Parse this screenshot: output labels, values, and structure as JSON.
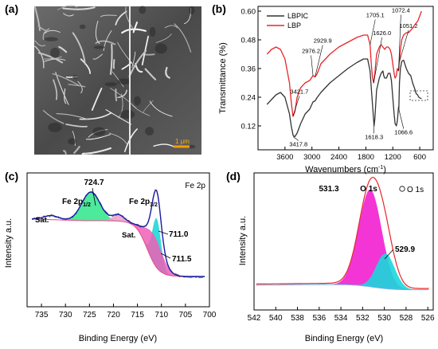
{
  "figure": {
    "panel_labels": [
      "(a)",
      "(b)",
      "(c)",
      "(d)"
    ]
  },
  "chart_data": [
    {
      "panel": "(a)",
      "type": "image",
      "description_items": [],
      "scale_bar_label": "1 μm"
    },
    {
      "panel": "(b)",
      "type": "line",
      "xlabel": "Wavenumbers (cm",
      "xlabel_sup": "-1",
      "xlabel_tail": ")",
      "ylabel": "Transmittance (%)",
      "xlim": [
        4200,
        300
      ],
      "ylim": [
        0.02,
        0.62
      ],
      "xticks": [
        3600,
        3000,
        2400,
        1800,
        1200,
        600
      ],
      "yticks": [
        0.12,
        0.24,
        0.36,
        0.48,
        0.6
      ],
      "ytick_labels": [
        "0.12",
        "0.24",
        "0.36",
        "0.48",
        "0.60"
      ],
      "legend": [
        "LBPIC",
        "LBP"
      ],
      "series": [
        {
          "name": "LBPIC",
          "color": "#333333",
          "x": [
            4000,
            3900,
            3800,
            3700,
            3600,
            3500,
            3460,
            3418,
            3380,
            3330,
            3250,
            3150,
            3050,
            2976,
            2929,
            2880,
            2800,
            2600,
            2400,
            2200,
            2000,
            1850,
            1760,
            1705,
            1680,
            1640,
            1618,
            1600,
            1560,
            1500,
            1460,
            1420,
            1400,
            1380,
            1340,
            1300,
            1260,
            1230,
            1200,
            1170,
            1150,
            1120,
            1100,
            1072,
            1066,
            1051,
            1030,
            1000,
            960,
            900,
            850,
            800,
            760,
            720,
            680,
            650,
            620,
            580,
            560
          ],
          "y": [
            0.21,
            0.23,
            0.25,
            0.26,
            0.24,
            0.17,
            0.12,
            0.08,
            0.075,
            0.09,
            0.13,
            0.17,
            0.19,
            0.22,
            0.225,
            0.24,
            0.26,
            0.3,
            0.33,
            0.36,
            0.385,
            0.4,
            0.4,
            0.35,
            0.28,
            0.18,
            0.12,
            0.15,
            0.27,
            0.32,
            0.34,
            0.35,
            0.33,
            0.32,
            0.32,
            0.34,
            0.34,
            0.31,
            0.24,
            0.17,
            0.13,
            0.12,
            0.14,
            0.2,
            0.19,
            0.3,
            0.36,
            0.39,
            0.395,
            0.36,
            0.34,
            0.33,
            0.3,
            0.28,
            0.255,
            0.25,
            0.24,
            0.235,
            0.235
          ]
        },
        {
          "name": "LBP",
          "color": "#e8262b",
          "x": [
            4000,
            3900,
            3800,
            3700,
            3600,
            3500,
            3460,
            3422,
            3380,
            3330,
            3250,
            3150,
            3050,
            2976,
            2929,
            2880,
            2800,
            2600,
            2400,
            2200,
            2000,
            1850,
            1760,
            1705,
            1680,
            1650,
            1626,
            1600,
            1560,
            1500,
            1460,
            1420,
            1380,
            1340,
            1300,
            1260,
            1230,
            1200,
            1170,
            1150,
            1120,
            1100,
            1072,
            1051,
            1030,
            1000,
            960,
            900,
            850,
            800,
            760,
            720,
            680,
            640,
            600,
            560
          ],
          "y": [
            0.42,
            0.44,
            0.45,
            0.44,
            0.4,
            0.3,
            0.22,
            0.16,
            0.18,
            0.24,
            0.28,
            0.3,
            0.31,
            0.33,
            0.325,
            0.34,
            0.38,
            0.42,
            0.45,
            0.47,
            0.49,
            0.5,
            0.5,
            0.46,
            0.38,
            0.32,
            0.3,
            0.34,
            0.42,
            0.45,
            0.46,
            0.45,
            0.44,
            0.45,
            0.45,
            0.44,
            0.42,
            0.38,
            0.34,
            0.32,
            0.33,
            0.36,
            0.35,
            0.39,
            0.44,
            0.48,
            0.5,
            0.51,
            0.51,
            0.52,
            0.53,
            0.54,
            0.55,
            0.56,
            0.58,
            0.6
          ]
        }
      ],
      "annotations": [
        {
          "text": "3421.7",
          "x": 3422,
          "y": 0.16,
          "label_x": 3280,
          "label_y": 0.255
        },
        {
          "text": "3417.8",
          "x": 3418,
          "y": 0.075,
          "label_x": 3300,
          "label_y": 0.035
        },
        {
          "text": "2976.2",
          "x": 2976,
          "y": 0.33,
          "label_x": 3020,
          "label_y": 0.425
        },
        {
          "text": "2929.9",
          "x": 2930,
          "y": 0.325,
          "label_x": 2760,
          "label_y": 0.468
        },
        {
          "text": "1705.1",
          "x": 1705,
          "y": 0.46,
          "label_x": 1590,
          "label_y": 0.575
        },
        {
          "text": "1626.0",
          "x": 1626,
          "y": 0.3,
          "label_x": 1440,
          "label_y": 0.5
        },
        {
          "text": "1618.3",
          "x": 1618,
          "y": 0.12,
          "label_x": 1618,
          "label_y": 0.065
        },
        {
          "text": "1072.4",
          "x": 1072,
          "y": 0.35,
          "label_x": 1020,
          "label_y": 0.595
        },
        {
          "text": "1051.2",
          "x": 1051,
          "y": 0.39,
          "label_x": 850,
          "label_y": 0.53
        },
        {
          "text": "1066.6",
          "x": 1066,
          "y": 0.19,
          "label_x": 960,
          "label_y": 0.085
        }
      ]
    },
    {
      "panel": "(c)",
      "type": "line",
      "title": "Fe 2p",
      "xlabel": "Binding Energy (eV)",
      "ylabel": "Intensity a.u.",
      "xlim": [
        738,
        700
      ],
      "xticks": [
        735,
        730,
        725,
        720,
        715,
        710,
        705,
        700
      ],
      "annotations": [
        {
          "text": "724.7"
        },
        {
          "text": "Fe 2p",
          "sub": "1/2"
        },
        {
          "text": "Fe 2p",
          "sub": "3/2"
        },
        {
          "text": "Sat."
        },
        {
          "text": "Sat."
        },
        {
          "text": "711.0"
        },
        {
          "text": "711.5"
        }
      ],
      "series": [
        {
          "name": "raw",
          "color": "#4a4a5a"
        },
        {
          "name": "fit",
          "color": "#1a1aa8"
        },
        {
          "name": "component-724.7",
          "color": "#2ee68a"
        },
        {
          "name": "component-711.0",
          "color": "#16d4d4"
        },
        {
          "name": "component-711.5",
          "color": "#ee5fb5"
        },
        {
          "name": "satellite-719",
          "color": "#e8a0c8"
        },
        {
          "name": "background",
          "color": "#e84a8a"
        }
      ]
    },
    {
      "panel": "(d)",
      "type": "line",
      "title": "O 1s",
      "peak_title": "O 1s",
      "xlabel": "Binding Energy (eV)",
      "ylabel": "Intensity a.u.",
      "xlim": [
        542,
        525.5
      ],
      "xticks": [
        542,
        540,
        538,
        536,
        534,
        532,
        530,
        528,
        526
      ],
      "annotations": [
        {
          "text": "531.3"
        },
        {
          "text": "529.9"
        }
      ],
      "series": [
        {
          "name": "raw",
          "color": "#e8262b"
        },
        {
          "name": "component-531.3",
          "color": "#f21fd0"
        },
        {
          "name": "component-529.9",
          "color": "#1ad8dc"
        },
        {
          "name": "background",
          "color": "#6ab0e8"
        }
      ]
    }
  ]
}
